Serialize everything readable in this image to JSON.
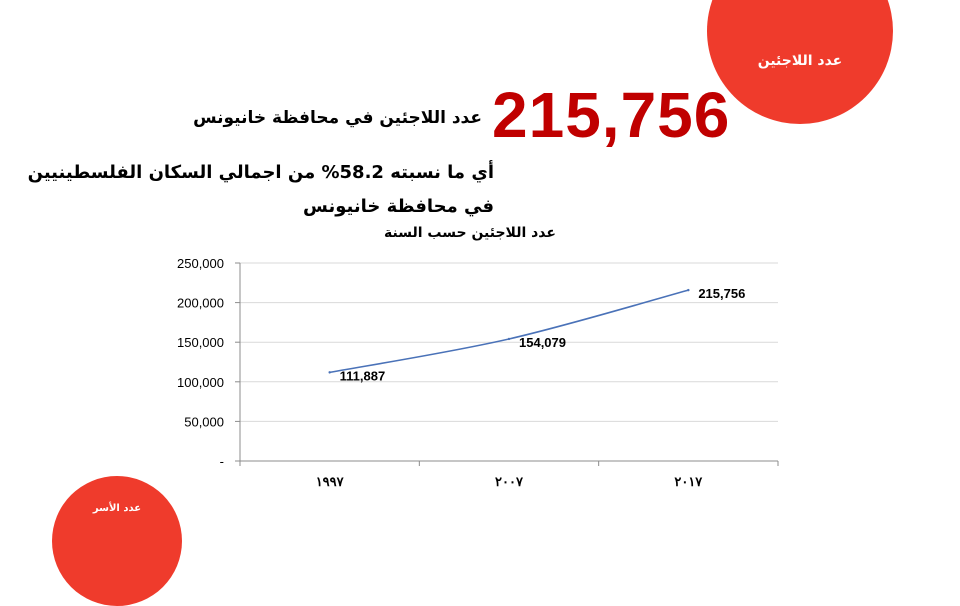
{
  "colors": {
    "accent": "#ef3b2c",
    "number": "#c00000",
    "line": "#4a72b8",
    "grid": "#d9d9d9"
  },
  "badges": {
    "top": "عدد اللاجئين",
    "bottom": "عدد الأسر"
  },
  "headline": {
    "number": "215,756",
    "label": "عدد اللاجئين في محافظة خانيونس"
  },
  "subtext": "أي ما نسبته 58.2% من اجمالي السكان الفلسطينيين في محافظة خانيونس",
  "chart_data": {
    "type": "line",
    "title": "عدد اللاجئين حسب السنة",
    "categories": [
      "١٩٩٧",
      "٢٠٠٧",
      "٢٠١٧"
    ],
    "series": [
      {
        "values": [
          111887,
          154079,
          215756
        ]
      }
    ],
    "data_labels": [
      "111,887",
      "154,079",
      "215,756"
    ],
    "y_ticks": [
      {
        "value": 0,
        "label": "-"
      },
      {
        "value": 50000,
        "label": "50,000"
      },
      {
        "value": 100000,
        "label": "100,000"
      },
      {
        "value": 150000,
        "label": "150,000"
      },
      {
        "value": 200000,
        "label": "200,000"
      },
      {
        "value": 250000,
        "label": "250,000"
      }
    ],
    "ylim": [
      0,
      250000
    ],
    "grid": true,
    "legend": "none"
  }
}
